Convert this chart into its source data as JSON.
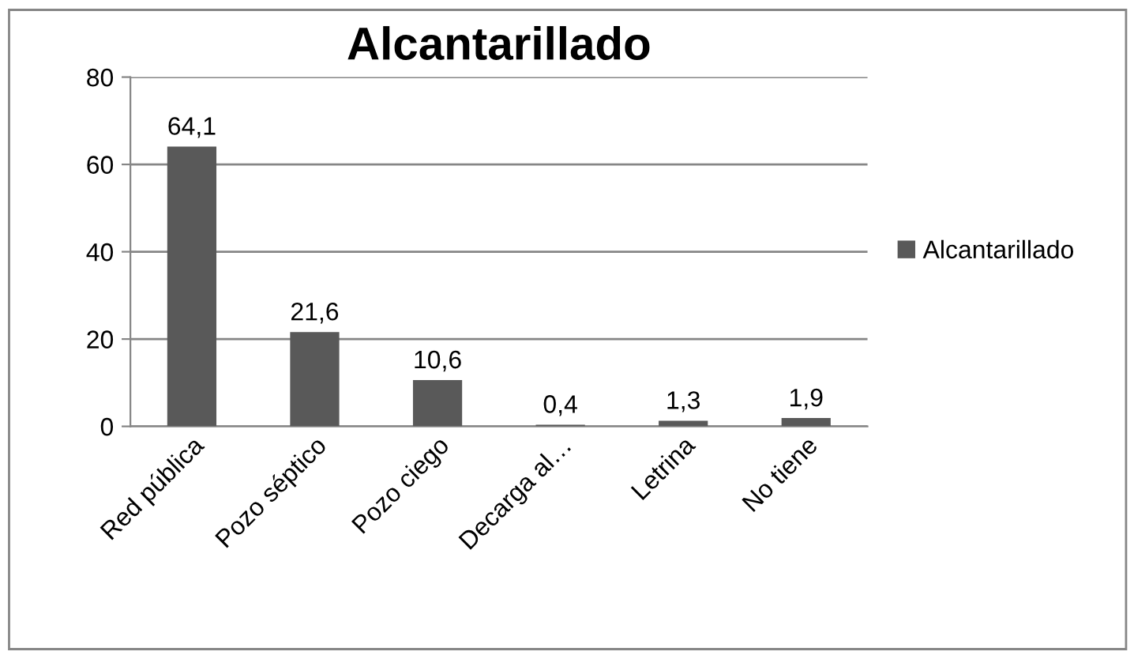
{
  "chart_data": {
    "type": "bar",
    "title": "Alcantarillado",
    "categories": [
      "Red pública",
      "Pozo séptico",
      "Pozo ciego",
      "Decarga al…",
      "Letrina",
      "No tiene"
    ],
    "series": [
      {
        "name": "Alcantarillado",
        "color": "#595959",
        "values": [
          64.1,
          21.6,
          10.6,
          0.4,
          1.3,
          1.9
        ],
        "value_labels": [
          "64,1",
          "21,6",
          "10,6",
          "0,4",
          "1,3",
          "1,9"
        ]
      }
    ],
    "ylim": [
      0,
      80
    ],
    "yticks": [
      0,
      20,
      40,
      60,
      80
    ],
    "grid": "y",
    "legend": "right"
  }
}
